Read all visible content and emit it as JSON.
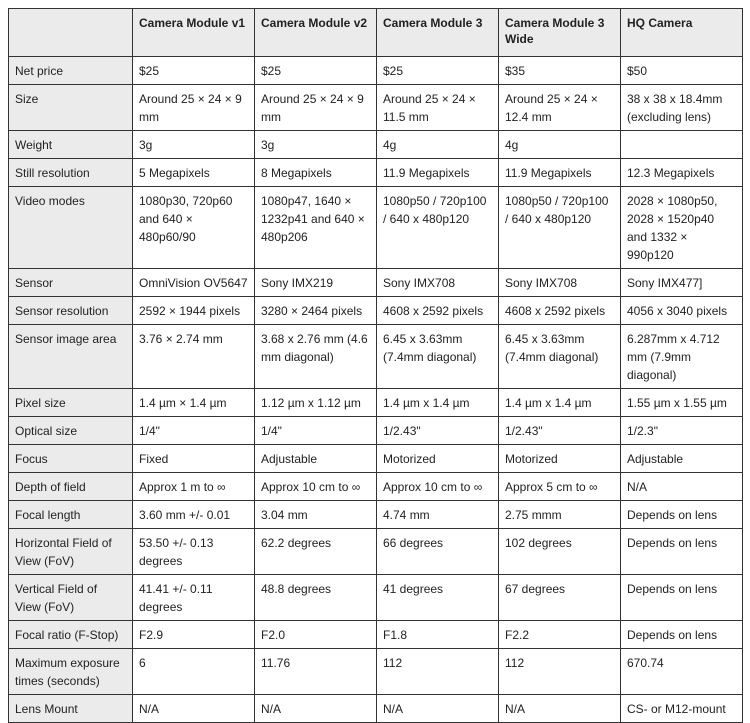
{
  "columns": [
    "",
    "Camera Module v1",
    "Camera Module v2",
    "Camera Module 3",
    "Camera Module 3 Wide",
    "HQ Camera"
  ],
  "rows": [
    {
      "label": "Net price",
      "cells": [
        "$25",
        "$25",
        "$25",
        "$35",
        "$50"
      ]
    },
    {
      "label": "Size",
      "cells": [
        "Around 25 × 24 × 9 mm",
        "Around 25 × 24 × 9 mm",
        "Around 25 × 24 × 11.5 mm",
        "Around 25 × 24 × 12.4 mm",
        "38 x 38 x 18.4mm (excluding lens)"
      ]
    },
    {
      "label": "Weight",
      "cells": [
        "3g",
        "3g",
        "4g",
        "4g",
        ""
      ]
    },
    {
      "label": "Still resolution",
      "cells": [
        "5 Megapixels",
        "8 Megapixels",
        "11.9 Megapixels",
        "11.9 Megapixels",
        "12.3 Megapixels"
      ]
    },
    {
      "label": "Video modes",
      "cells": [
        "1080p30, 720p60 and 640 × 480p60/90",
        "1080p47, 1640 × 1232p41 and 640 × 480p206",
        "1080p50 / 720p100 / 640 x 480p120",
        "1080p50 / 720p100 / 640 x 480p120",
        "2028 × 1080p50, 2028 × 1520p40 and 1332 × 990p120"
      ]
    },
    {
      "label": "Sensor",
      "cells": [
        "OmniVision OV5647",
        "Sony IMX219",
        "Sony IMX708",
        "Sony IMX708",
        "Sony IMX477]"
      ]
    },
    {
      "label": "Sensor resolution",
      "cells": [
        "2592 × 1944 pixels",
        "3280 × 2464 pixels",
        "4608 x 2592 pixels",
        "4608 x 2592 pixels",
        "4056 x 3040 pixels"
      ]
    },
    {
      "label": "Sensor image area",
      "cells": [
        "3.76 × 2.74 mm",
        "3.68 x 2.76 mm (4.6 mm diagonal)",
        "6.45 x 3.63mm (7.4mm diagonal)",
        "6.45 x 3.63mm (7.4mm diagonal)",
        "6.287mm x 4.712 mm (7.9mm diagonal)"
      ]
    },
    {
      "label": "Pixel size",
      "cells": [
        "1.4 µm × 1.4 µm",
        "1.12 µm x 1.12 µm",
        "1.4 µm x 1.4 µm",
        "1.4 µm x 1.4 µm",
        "1.55 µm x 1.55 µm"
      ]
    },
    {
      "label": "Optical size",
      "cells": [
        "1/4\"",
        "1/4\"",
        "1/2.43\"",
        "1/2.43\"",
        "1/2.3\""
      ]
    },
    {
      "label": "Focus",
      "cells": [
        "Fixed",
        "Adjustable",
        "Motorized",
        "Motorized",
        "Adjustable"
      ]
    },
    {
      "label": "Depth of field",
      "cells": [
        "Approx 1 m to ∞",
        "Approx 10 cm to ∞",
        "Approx 10 cm to ∞",
        "Approx 5 cm to ∞",
        "N/A"
      ]
    },
    {
      "label": "Focal length",
      "cells": [
        "3.60 mm +/- 0.01",
        "3.04 mm",
        "4.74 mm",
        "2.75 mmm",
        "Depends on lens"
      ]
    },
    {
      "label": "Horizontal Field of View (FoV)",
      "cells": [
        "53.50 +/- 0.13 degrees",
        "62.2 degrees",
        "66 degrees",
        "102 degrees",
        "Depends on lens"
      ]
    },
    {
      "label": "Vertical Field of View (FoV)",
      "cells": [
        "41.41 +/- 0.11 degrees",
        "48.8 degrees",
        "41 degrees",
        "67 degrees",
        "Depends on lens"
      ]
    },
    {
      "label": "Focal ratio (F-Stop)",
      "cells": [
        "F2.9",
        "F2.0",
        "F1.8",
        "F2.2",
        "Depends on lens"
      ]
    },
    {
      "label": "Maximum exposure times (seconds)",
      "cells": [
        "6",
        "11.76",
        "112",
        "112",
        "670.74"
      ]
    },
    {
      "label": "Lens Mount",
      "cells": [
        "N/A",
        "N/A",
        "N/A",
        "N/A",
        "CS- or M12-mount"
      ]
    }
  ]
}
